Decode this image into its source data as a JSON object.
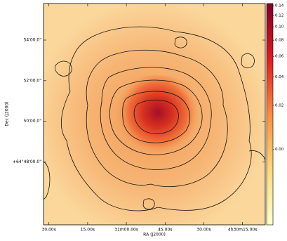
{
  "chart_data": {
    "type": "image",
    "xlabel": "RA (J2000)",
    "ylabel": "Dec (J2000)",
    "xlim": [
      92.1,
      6.2
    ],
    "xticks": [
      {
        "value": 90,
        "label": "30.00s"
      },
      {
        "value": 75,
        "label": "15.00s"
      },
      {
        "value": 60,
        "label": "31m00.00s"
      },
      {
        "value": 45,
        "label": "45.00s"
      },
      {
        "value": 30,
        "label": "30.00s"
      },
      {
        "value": 15,
        "label": "4h30m15.00s"
      }
    ],
    "ylim": [
      44.9,
      55.8
    ],
    "yticks": [
      {
        "value": 54,
        "label": "54'00.0\""
      },
      {
        "value": 52,
        "label": "52'00.0\""
      },
      {
        "value": 50,
        "label": "50'00.0\""
      },
      {
        "value": 48,
        "label": "+64°48'00.0\""
      }
    ],
    "colorbar": {
      "lim": [
        -0.02,
        0.145
      ],
      "stretch": "asinh",
      "colors": [
        "#ffffcc",
        "#fed976",
        "#fd8d3c",
        "#e31a1c",
        "#800026"
      ],
      "ticks": [
        0.14,
        0.12,
        {
          "value": 0.1,
          "label": "0.10"
        },
        0.08,
        0.06,
        0.04,
        0.02,
        {
          "value": 0,
          "label": "0.00"
        }
      ]
    }
  }
}
